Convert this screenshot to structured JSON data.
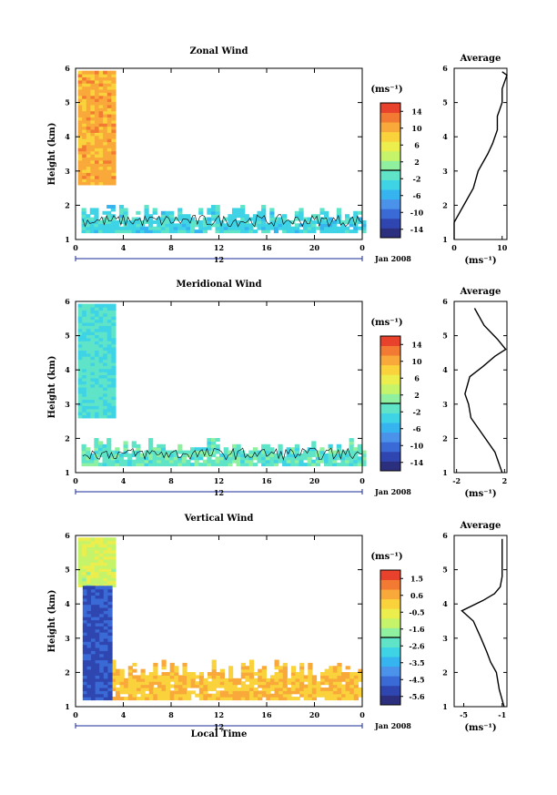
{
  "colorscale": [
    "#2b2f7e",
    "#2f46b0",
    "#3a6ad6",
    "#4a92ea",
    "#35b4ef",
    "#3fd3e6",
    "#5fe4c8",
    "#8ff0a0",
    "#c5f36a",
    "#ecee4e",
    "#f9d23c",
    "#f9a93a",
    "#f37a33",
    "#e8422c"
  ],
  "panels": [
    {
      "title": "Zonal Wind",
      "ylabel": "Height (km)",
      "yticks": [
        "1",
        "2",
        "3",
        "4",
        "5",
        "6"
      ],
      "xticks": [
        "0",
        "4",
        "8",
        "12",
        "16",
        "20",
        "0"
      ],
      "date_marker": "12",
      "date_label": "Jan 2008",
      "cbar_unit": "(ms⁻¹)",
      "cbar_ticks": [
        "14",
        "10",
        "6",
        "2",
        "-2",
        "-6",
        "-10",
        "-14"
      ],
      "avg_title": "Average",
      "avg_xticks": [
        "0",
        "10"
      ],
      "avg_xlabel": "(ms⁻¹)",
      "chart_data": {
        "type": "heatmap",
        "x": [
          0,
          24
        ],
        "xunit": "Local Time (h)",
        "ylim": [
          1,
          6
        ],
        "clim": [
          -16,
          16
        ],
        "tall_block": {
          "x": [
            0.2,
            3.2
          ],
          "y": [
            2.6,
            5.9
          ],
          "value": 10
        },
        "low_layer": {
          "x": [
            0.5,
            24
          ],
          "y": [
            1.2,
            2.0
          ],
          "value": -3
        },
        "average_profile": {
          "x": [
            0,
            0,
            2,
            4,
            5,
            7,
            8,
            9,
            9,
            10,
            10,
            11,
            10
          ],
          "y": [
            1.0,
            1.5,
            2.0,
            2.5,
            3.0,
            3.5,
            3.8,
            4.2,
            4.6,
            5.0,
            5.4,
            5.8,
            5.9
          ],
          "xlim": [
            0,
            11
          ]
        }
      }
    },
    {
      "title": "Meridional Wind",
      "ylabel": "Height (km)",
      "yticks": [
        "1",
        "2",
        "3",
        "4",
        "5",
        "6"
      ],
      "xticks": [
        "0",
        "4",
        "8",
        "12",
        "16",
        "20",
        "0"
      ],
      "date_marker": "12",
      "date_label": "Jan 2008",
      "cbar_unit": "(ms⁻¹)",
      "cbar_ticks": [
        "14",
        "10",
        "6",
        "2",
        "-2",
        "-6",
        "-10",
        "-14"
      ],
      "avg_title": "Average",
      "avg_xticks": [
        "-2",
        "2"
      ],
      "avg_xlabel": "(ms⁻¹)",
      "chart_data": {
        "type": "heatmap",
        "x": [
          0,
          24
        ],
        "xunit": "Local Time (h)",
        "ylim": [
          1,
          6
        ],
        "clim": [
          -16,
          16
        ],
        "tall_block": {
          "x": [
            0.2,
            3.2
          ],
          "y": [
            2.6,
            5.9
          ],
          "value": -2
        },
        "low_layer": {
          "x": [
            0.5,
            24
          ],
          "y": [
            1.2,
            2.0
          ],
          "value": -1
        },
        "average_profile": {
          "x": [
            1.8,
            1.2,
            0.0,
            -0.8,
            -1.0,
            -1.3,
            -0.9,
            0.2,
            1.2,
            2.1,
            1.4,
            0.3,
            -0.5
          ],
          "y": [
            1.0,
            1.6,
            2.2,
            2.6,
            3.0,
            3.3,
            3.8,
            4.1,
            4.4,
            4.6,
            4.9,
            5.3,
            5.8
          ],
          "xlim": [
            -2.2,
            2.2
          ]
        }
      }
    },
    {
      "title": "Vertical Wind",
      "ylabel": "Height (km)",
      "yticks": [
        "1",
        "2",
        "3",
        "4",
        "5",
        "6"
      ],
      "xticks": [
        "0",
        "4",
        "8",
        "12",
        "16",
        "20",
        "0"
      ],
      "date_marker": "12",
      "date_label": "Jan 2008",
      "xlabel": "Local Time",
      "cbar_unit": "(ms⁻¹)",
      "cbar_ticks": [
        "1.5",
        "0.6",
        "-0.5",
        "-1.6",
        "-2.6",
        "-3.5",
        "-4.5",
        "-5.6"
      ],
      "avg_title": "Average",
      "avg_xticks": [
        "-5",
        "-1"
      ],
      "avg_xlabel": "(ms⁻¹)",
      "chart_data": {
        "type": "heatmap",
        "x": [
          0,
          24
        ],
        "xunit": "Local Time (h)",
        "ylim": [
          1,
          6
        ],
        "clim": [
          -6.1,
          2.0
        ],
        "tall_block_upper": {
          "x": [
            0.2,
            3.2
          ],
          "y": [
            4.5,
            5.9
          ],
          "value": -1.0
        },
        "tall_block_lower": {
          "x": [
            0.6,
            2.8
          ],
          "y": [
            1.2,
            4.5
          ],
          "value": -5.0
        },
        "low_layer": {
          "x": [
            3,
            24
          ],
          "y": [
            1.2,
            2.3
          ],
          "value": 0.2
        },
        "average_profile": {
          "x": [
            -1,
            -1,
            -1.2,
            -1.8,
            -3.0,
            -5.2,
            -4.0,
            -3.2,
            -2.6,
            -2.2,
            -1.6,
            -1.3,
            -0.8
          ],
          "y": [
            5.9,
            4.8,
            4.5,
            4.3,
            4.1,
            3.8,
            3.5,
            3.0,
            2.6,
            2.3,
            2.0,
            1.5,
            1.0
          ],
          "xlim": [
            -6,
            -0.5
          ]
        }
      }
    }
  ]
}
